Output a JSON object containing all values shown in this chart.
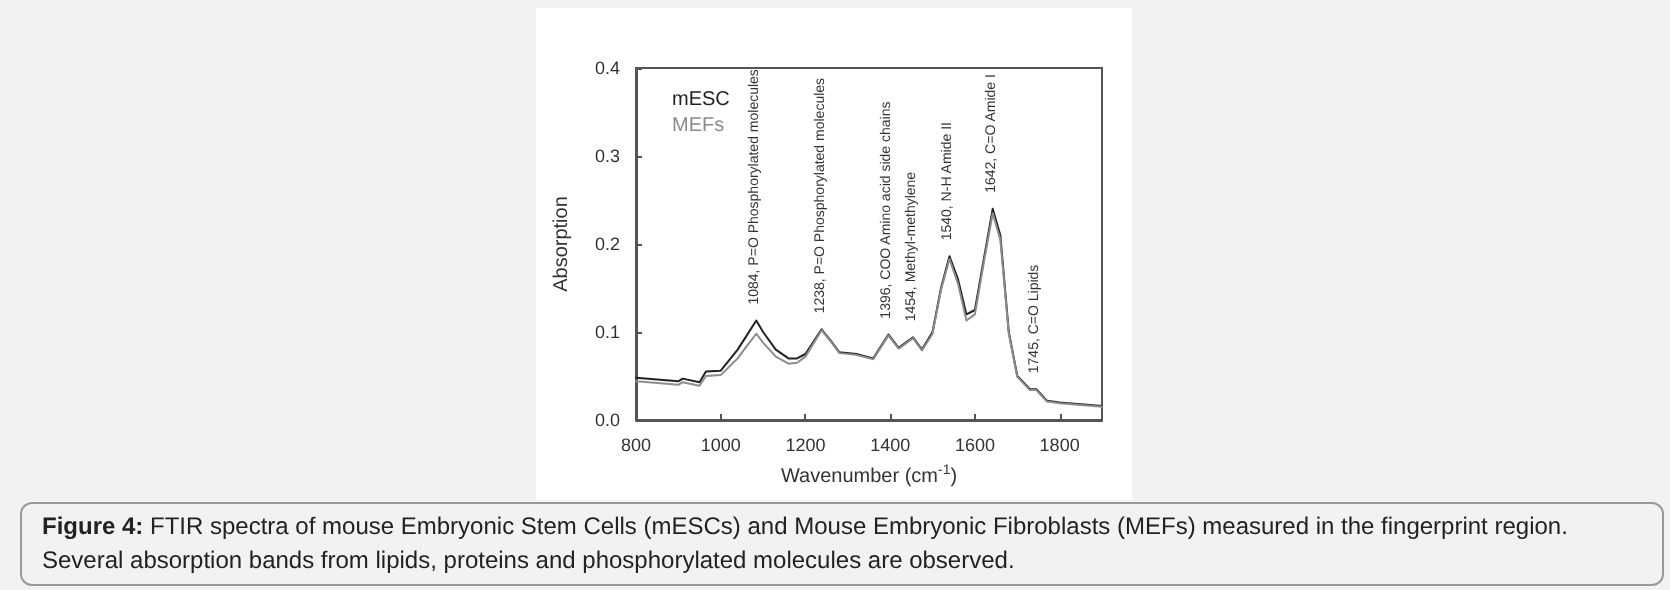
{
  "chart_data": {
    "type": "line",
    "xlabel": "Wavenumber (cm$^{-1}$)",
    "ylabel": "Absorption",
    "x": [
      800,
      850,
      900,
      910,
      950,
      965,
      1000,
      1040,
      1060,
      1084,
      1100,
      1130,
      1160,
      1180,
      1200,
      1238,
      1260,
      1280,
      1320,
      1360,
      1396,
      1420,
      1454,
      1475,
      1500,
      1520,
      1540,
      1560,
      1580,
      1600,
      1620,
      1642,
      1660,
      1680,
      1700,
      1730,
      1745,
      1770,
      1800,
      1850,
      1900
    ],
    "series": [
      {
        "name": "mESC",
        "color": "#222222",
        "values": [
          0.048,
          0.046,
          0.044,
          0.047,
          0.043,
          0.055,
          0.056,
          0.08,
          0.095,
          0.113,
          0.1,
          0.08,
          0.07,
          0.07,
          0.075,
          0.103,
          0.09,
          0.077,
          0.075,
          0.07,
          0.097,
          0.082,
          0.094,
          0.08,
          0.1,
          0.15,
          0.186,
          0.16,
          0.12,
          0.125,
          0.18,
          0.24,
          0.21,
          0.1,
          0.05,
          0.035,
          0.035,
          0.022,
          0.02,
          0.018,
          0.016
        ]
      },
      {
        "name": "MEFs",
        "color": "#8c8c8c",
        "values": [
          0.044,
          0.042,
          0.04,
          0.043,
          0.039,
          0.05,
          0.051,
          0.07,
          0.083,
          0.098,
          0.088,
          0.072,
          0.064,
          0.065,
          0.072,
          0.102,
          0.089,
          0.076,
          0.074,
          0.069,
          0.096,
          0.081,
          0.093,
          0.079,
          0.098,
          0.148,
          0.183,
          0.155,
          0.113,
          0.12,
          0.176,
          0.235,
          0.205,
          0.098,
          0.049,
          0.034,
          0.034,
          0.021,
          0.019,
          0.017,
          0.015
        ]
      }
    ],
    "xlim": [
      800,
      1900
    ],
    "xticks": [
      800,
      1000,
      1200,
      1400,
      1600,
      1800
    ],
    "ylim": [
      0,
      0.4
    ],
    "yticks": [
      {
        "value": 0,
        "label": "0.0"
      },
      0.1,
      0.2,
      0.3,
      0.4
    ],
    "grid": false,
    "legend": "top left",
    "marker": "none",
    "line_style": "solid",
    "annotations": [
      {
        "text": "1084, P=O Phosphorylated molecules",
        "x": 1084,
        "y": 0.113
      },
      {
        "text": "1238, P=O Phosphorylated molecules",
        "x": 1238,
        "y": 0.103
      },
      {
        "text": "1396, COO Amino acid side chains",
        "x": 1396,
        "y": 0.097
      },
      {
        "text": "1454, Methyl-methylene",
        "x": 1454,
        "y": 0.094
      },
      {
        "text": "1540, N-H Amide II",
        "x": 1540,
        "y": 0.186
      },
      {
        "text": "1642, C=O Amide I",
        "x": 1642,
        "y": 0.24
      },
      {
        "text": "1745, C=O Lipids",
        "x": 1745,
        "y": 0.035
      },
      "Figure 4: FTIR spectra of mouse Embryonic Stem Cells (mESCs) and Mouse Embryonic Fibroblasts (MEFs) measured in the fingerprint region. Several absorption bands from lipids, proteins and phosphorylated molecules are observed."
    ]
  }
}
